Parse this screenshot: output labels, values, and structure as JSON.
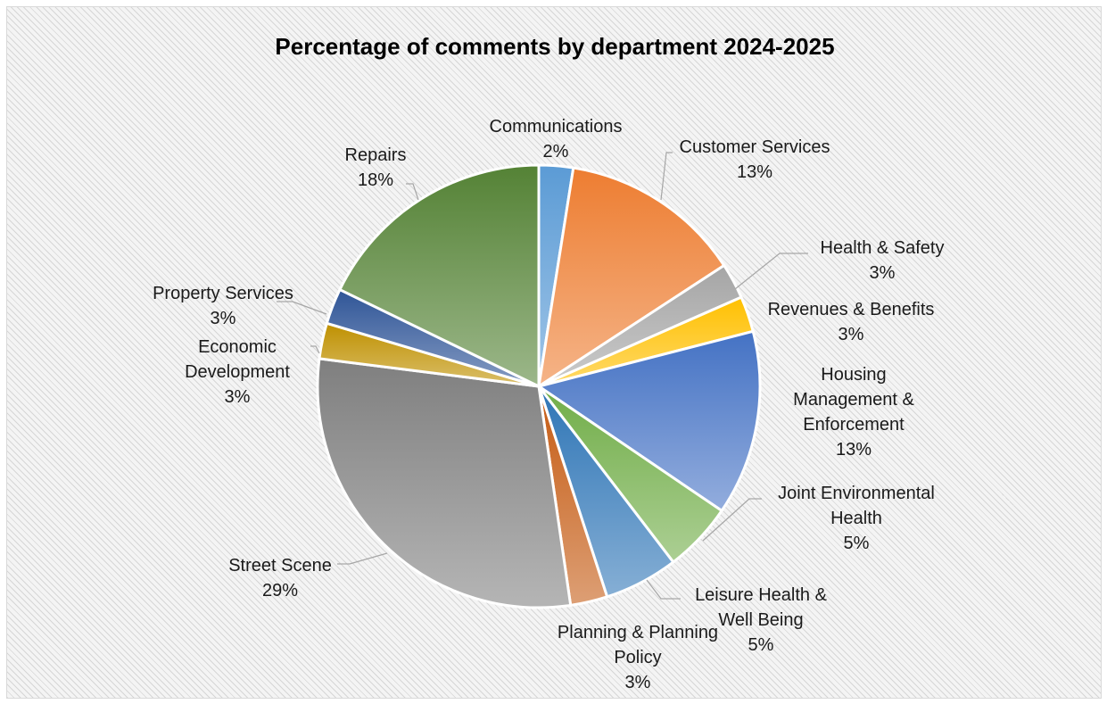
{
  "chart_data": {
    "type": "pie",
    "title": "Percentage of comments by department 2024-2025",
    "slices": [
      {
        "label_lines": [
          "Communications"
        ],
        "pct_text": "2%",
        "value": 2.5,
        "color": "#5b9bd5"
      },
      {
        "label_lines": [
          "Customer Services"
        ],
        "pct_text": "13%",
        "value": 13.3,
        "color": "#ed7d31"
      },
      {
        "label_lines": [
          "Health & Safety"
        ],
        "pct_text": "3%",
        "value": 2.6,
        "color": "#a5a5a5"
      },
      {
        "label_lines": [
          "Revenues & Benefits"
        ],
        "pct_text": "3%",
        "value": 2.6,
        "color": "#ffc000"
      },
      {
        "label_lines": [
          "Housing",
          "Management &",
          "Enforcement"
        ],
        "pct_text": "13%",
        "value": 13.5,
        "color": "#4472c4"
      },
      {
        "label_lines": [
          "Joint Environmental",
          "Health"
        ],
        "pct_text": "5%",
        "value": 5.1,
        "color": "#70ad47"
      },
      {
        "label_lines": [
          "Leisure Health &",
          "Well Being"
        ],
        "pct_text": "5%",
        "value": 5.4,
        "color": "#2e75b6"
      },
      {
        "label_lines": [
          "Planning & Planning",
          "Policy"
        ],
        "pct_text": "3%",
        "value": 2.7,
        "color": "#c55a11"
      },
      {
        "label_lines": [
          "Street Scene"
        ],
        "pct_text": "29%",
        "value": 29.3,
        "color": "#7f7f7f"
      },
      {
        "label_lines": [
          "Economic",
          "Development"
        ],
        "pct_text": "3%",
        "value": 2.6,
        "color": "#bf9000"
      },
      {
        "label_lines": [
          "Property Services"
        ],
        "pct_text": "3%",
        "value": 2.6,
        "color": "#2f5597"
      },
      {
        "label_lines": [
          "Repairs"
        ],
        "pct_text": "18%",
        "value": 17.8,
        "color": "#548235"
      }
    ]
  }
}
